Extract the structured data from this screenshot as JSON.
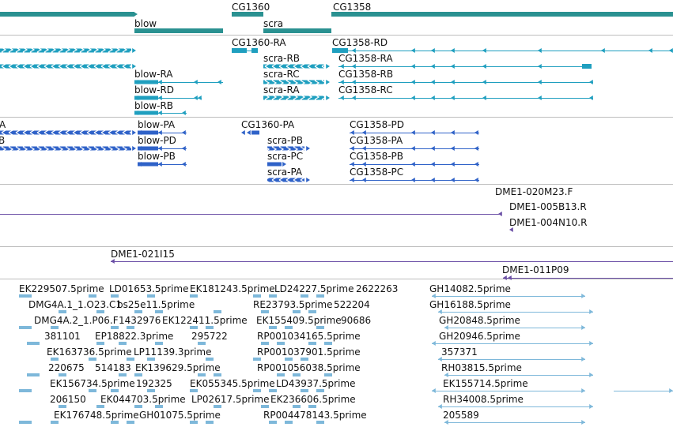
{
  "colors": {
    "gene": "#2a9191",
    "transcript": "#1f9fbf",
    "protein": "#2f62c8",
    "bac": "#6b4fa6",
    "est": "#7eb8da",
    "divider": "#bdbdbd"
  },
  "tracks": {
    "genes": {
      "labels": {
        "CG1360": "CG1360",
        "CG1358": "CG1358",
        "blow": "blow",
        "scra": "scra"
      }
    },
    "transcripts": {
      "labels": {
        "CG1360-RA": "CG1360-RA",
        "CG1358-RD": "CG1358-RD",
        "scra-RB": "scra-RB",
        "CG1358-RA": "CG1358-RA",
        "blow-RA": "blow-RA",
        "scra-RC": "scra-RC",
        "CG1358-RB": "CG1358-RB",
        "blow-RD": "blow-RD",
        "scra-RA": "scra-RA",
        "CG1358-RC": "CG1358-RC",
        "blow-RB": "blow-RB"
      }
    },
    "proteins": {
      "labels": {
        "A": "A",
        "B": "B",
        "blow-PA": "blow-PA",
        "CG1360-PA": "CG1360-PA",
        "CG1358-PD": "CG1358-PD",
        "blow-PD": "blow-PD",
        "scra-PB": "scra-PB",
        "CG1358-PA": "CG1358-PA",
        "blow-PB": "blow-PB",
        "scra-PC": "scra-PC",
        "CG1358-PB": "CG1358-PB",
        "scra-PA": "scra-PA",
        "CG1358-PC": "CG1358-PC"
      }
    },
    "bac_ends": {
      "labels": {
        "DME1-020M23.F": "DME1-020M23.F",
        "DME1-005B13.R": "DME1-005B13.R",
        "DME1-004N10.R": "DME1-004N10.R"
      }
    },
    "bac_clones": {
      "labels": {
        "DME1-021I15": "DME1-021I15",
        "DME1-011P09": "DME1-011P09"
      }
    },
    "ests": {
      "labels": {
        "EK229507.5prime": "EK229507.5prime",
        "LD01653.5prime": "LD01653.5prime",
        "EK181243.5prime": "EK181243.5prime",
        "LD24227.5prime": "LD24227.5prime",
        "2622263": "2622263",
        "GH14082.5prime": "GH14082.5prime",
        "DMG4A.1_1.O23.C1": "DMG4A.1_1.O23.C1",
        "bs25e11.5prime": "bs25e11.5prime",
        "RE23793.5prime": "RE23793.5prime",
        "522204": "522204",
        "GH16188.5prime": "GH16188.5prime",
        "DMG4A.2_1.P06.F": "DMG4A.2_1.P06.F",
        "1432976": "1432976",
        "EK122411.5prime": "EK122411.5prime",
        "EK155409.5prime": "EK155409.5prime",
        "90686": "90686",
        "GH20848.5prime": "GH20848.5prime",
        "381101": "381101",
        "EP18822.3prime": "EP18822.3prime",
        "295722": "295722",
        "RP001034165.5prime": "RP001034165.5prime",
        "GH20946.5prime": "GH20946.5prime",
        "EK163736.5prime": "EK163736.5prime",
        "LP11139.3prime": "LP11139.3prime",
        "RP001037901.5prime": "RP001037901.5prime",
        "357371": "357371",
        "220675": "220675",
        "514183": "514183",
        "EK139629.5prime": "EK139629.5prime",
        "RP001056038.5prime": "RP001056038.5prime",
        "RH03815.5prime": "RH03815.5prime",
        "EK156734.5prime": "EK156734.5prime",
        "192325": "192325",
        "EK055345.5prime": "EK055345.5prime",
        "LD43937.5prime": "LD43937.5prime",
        "EK155714.5prime": "EK155714.5prime",
        "206150": "206150",
        "EK044703.5prime": "EK044703.5prime",
        "LP02617.5prime": "LP02617.5prime",
        "EK236606.5prime": "EK236606.5prime",
        "RH34008.5prime": "RH34008.5prime",
        "EK176748.5prime": "EK176748.5prime",
        "GH01075.5prime": "GH01075.5prime",
        "RP004478143.5prime": "RP004478143.5prime",
        "205589": "205589"
      }
    }
  }
}
